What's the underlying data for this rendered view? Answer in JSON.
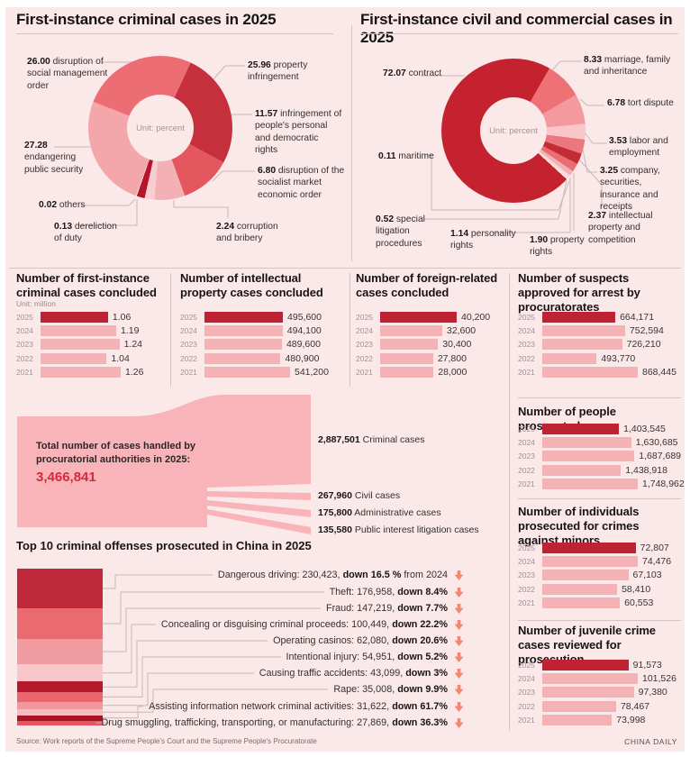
{
  "header": {
    "left_title": "First-instance criminal cases in 2025",
    "right_title": "First-instance civil and commercial cases in 2025"
  },
  "chart_data": [
    {
      "type": "pie",
      "title": "First-instance criminal cases in 2025",
      "unit": "Unit: percent",
      "labels": [
        "property infringement",
        "infringement of people's personal and democratic rights",
        "disruption of the socialist market economic order",
        "corruption and bribery",
        "dereliction of duty",
        "others",
        "endangering public security",
        "disruption of social management order"
      ],
      "values": [
        25.96,
        11.57,
        6.8,
        2.24,
        0.13,
        0.02,
        27.28,
        26.0
      ],
      "display": [
        "25.96",
        "11.57",
        "6.80",
        "2.24",
        "0.13",
        "0.02",
        "27.28",
        "26.00"
      ],
      "display_weights": [
        25.96,
        11.57,
        6.8,
        2.24,
        1.8,
        0.2,
        25.43,
        26.0
      ],
      "colors": [
        "#c5303c",
        "#e4575f",
        "#f3b0b5",
        "#f9cdd1",
        "#b5152a",
        "#fbe9e9",
        "#f3a7ab",
        "#ec6e74"
      ]
    },
    {
      "type": "pie",
      "title": "First-instance civil and commercial cases in 2025",
      "unit": "Unit: percent",
      "labels": [
        "marriage, family and inheritance",
        "tort dispute",
        "labor and employment",
        "company, securities, insurance and receipts",
        "intellectual property and competition",
        "property rights",
        "personality rights",
        "special litigation procedures",
        "maritime",
        "contract"
      ],
      "values": [
        8.33,
        6.78,
        3.53,
        3.25,
        2.37,
        1.9,
        1.14,
        0.52,
        0.11,
        72.07
      ],
      "display": [
        "8.33",
        "6.78",
        "3.53",
        "3.25",
        "2.37",
        "1.90",
        "1.14",
        "0.52",
        "0.11",
        "72.07"
      ],
      "display_weights": [
        8.33,
        6.78,
        3.53,
        3.25,
        2.37,
        1.9,
        1.14,
        0.52,
        0.61,
        71.57
      ],
      "colors": [
        "#ee7176",
        "#f29a9e",
        "#f9c6c9",
        "#eb787e",
        "#c32b36",
        "#ea6d73",
        "#f4b1b5",
        "#fad4d6",
        "#fbe3e4",
        "#c5222f"
      ]
    },
    {
      "type": "bar",
      "title": "Number of first-instance criminal cases concluded",
      "unit": "Unit: million",
      "categories": [
        "2025",
        "2024",
        "2023",
        "2022",
        "2021"
      ],
      "values": [
        1.06,
        1.19,
        1.24,
        1.04,
        1.26
      ],
      "display": [
        "1.06",
        "1.19",
        "1.24",
        "1.04",
        "1.26"
      ]
    },
    {
      "type": "bar",
      "title": "Number of intellectual property cases concluded",
      "categories": [
        "2025",
        "2024",
        "2023",
        "2022",
        "2021"
      ],
      "values": [
        495600,
        494100,
        489600,
        480900,
        541200
      ],
      "display": [
        "495,600",
        "494,100",
        "489,600",
        "480,900",
        "541,200"
      ]
    },
    {
      "type": "bar",
      "title": "Number of foreign-related cases concluded",
      "categories": [
        "2025",
        "2024",
        "2023",
        "2022",
        "2021"
      ],
      "values": [
        40200,
        32600,
        30400,
        27800,
        28000
      ],
      "display": [
        "40,200",
        "32,600",
        "30,400",
        "27,800",
        "28,000"
      ]
    },
    {
      "type": "bar",
      "title": "Number of suspects approved for arrest by procuratorates",
      "categories": [
        "2025",
        "2024",
        "2023",
        "2022",
        "2021"
      ],
      "values": [
        664171,
        752594,
        726210,
        493770,
        868445
      ],
      "display": [
        "664,171",
        "752,594",
        "726,210",
        "493,770",
        "868,445"
      ]
    },
    {
      "type": "bar",
      "title": "Number of people prosecuted",
      "categories": [
        "2025",
        "2024",
        "2023",
        "2022",
        "2021"
      ],
      "values": [
        1403545,
        1630685,
        1687689,
        1438918,
        1748962
      ],
      "display": [
        "1,403,545",
        "1,630,685",
        "1,687,689",
        "1,438,918",
        "1,748,962"
      ]
    },
    {
      "type": "bar",
      "title": "Number of individuals prosecuted for crimes against minors",
      "categories": [
        "2025",
        "2024",
        "2023",
        "2022",
        "2021"
      ],
      "values": [
        72807,
        74476,
        67103,
        58410,
        60553
      ],
      "display": [
        "72,807",
        "74,476",
        "67,103",
        "58,410",
        "60,553"
      ]
    },
    {
      "type": "bar",
      "title": "Number of juvenile crime cases reviewed for prosecution",
      "categories": [
        "2025",
        "2024",
        "2023",
        "2022",
        "2021"
      ],
      "values": [
        91573,
        101526,
        97380,
        78467,
        73998
      ],
      "display": [
        "91,573",
        "101,526",
        "97,380",
        "78,467",
        "73,998"
      ]
    },
    {
      "type": "flow",
      "total_label": "Total number of cases handled by procuratorial authorities in 2025:",
      "total_value": "3,466,841",
      "branches": [
        {
          "value": "2,887,501",
          "label": "Criminal cases",
          "num": 2887501
        },
        {
          "value": "267,960",
          "label": "Civil cases",
          "num": 267960
        },
        {
          "value": "175,800",
          "label": "Administrative cases",
          "num": 175800
        },
        {
          "value": "135,580",
          "label": "Public interest litigation cases",
          "num": 135580
        }
      ]
    },
    {
      "type": "bar",
      "title": "Top 10 criminal offenses prosecuted in China in 2025",
      "items": [
        {
          "name": "Dangerous driving",
          "value_display": "230,423",
          "value": 230423,
          "change": "down 16.5 %",
          "suffix": " from 2024"
        },
        {
          "name": "Theft",
          "value_display": "176,958",
          "value": 176958,
          "change": "down 8.4%",
          "suffix": ""
        },
        {
          "name": "Fraud",
          "value_display": "147,219",
          "value": 147219,
          "change": "down 7.7%",
          "suffix": ""
        },
        {
          "name": "Concealing or disguising criminal proceeds",
          "value_display": "100,449",
          "value": 100449,
          "change": "down 22.2%",
          "suffix": ""
        },
        {
          "name": "Operating casinos",
          "value_display": "62,080",
          "value": 62080,
          "change": "down 20.6%",
          "suffix": ""
        },
        {
          "name": "Intentional injury",
          "value_display": "54,951",
          "value": 54951,
          "change": "down 5.2%",
          "suffix": ""
        },
        {
          "name": "Causing traffic accidents",
          "value_display": "43,099",
          "value": 43099,
          "change": "down 3%",
          "suffix": ""
        },
        {
          "name": "Rape",
          "value_display": "35,008",
          "value": 35008,
          "change": "down 9.9%",
          "suffix": ""
        },
        {
          "name": "Assisting information network criminal activities",
          "value_display": "31,622",
          "value": 31622,
          "change": "down 61.7%",
          "suffix": ""
        },
        {
          "name": "Drug smuggling, trafficking, transporting, or manufacturing",
          "value_display": "27,869",
          "value": 27869,
          "change": "down 36.3%",
          "suffix": ""
        }
      ],
      "segment_colors": [
        "#c0293a",
        "#e96b70",
        "#f09ba0",
        "#f8c7cb",
        "#b5182b",
        "#e8666c",
        "#f0989c",
        "#f6bdc0",
        "#a81325",
        "#e25761"
      ]
    }
  ],
  "footer": {
    "source": "Source: Work reports of the Supreme People's Court and the Supreme People's Procuratorate",
    "brand": "CHINA DAILY"
  }
}
